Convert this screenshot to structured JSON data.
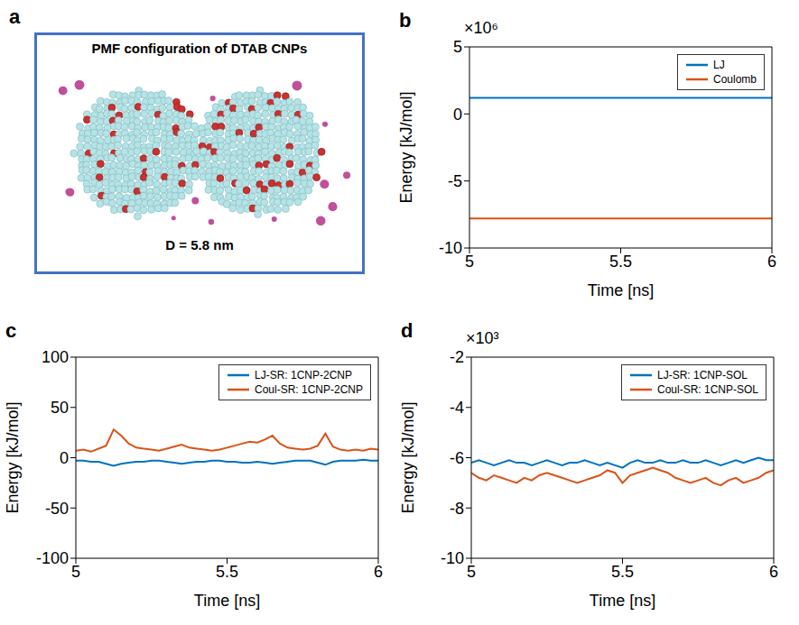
{
  "panel_a": {
    "label": "a",
    "title": "PMF configuration of DTAB CNPs",
    "annotation": "D = 5.8 nm"
  },
  "chart_data": [
    {
      "panel": "b",
      "type": "line",
      "xlabel": "Time [ns]",
      "ylabel": "Energy [kJ/mol]",
      "y_scale_label": "×10⁶",
      "x": [
        5,
        5.1,
        5.2,
        5.3,
        5.4,
        5.5,
        5.6,
        5.7,
        5.8,
        5.9,
        6
      ],
      "series": [
        {
          "name": "LJ",
          "color": "#0072BD",
          "values": [
            1.2,
            1.2,
            1.2,
            1.2,
            1.2,
            1.2,
            1.2,
            1.2,
            1.2,
            1.2,
            1.2
          ]
        },
        {
          "name": "Coulomb",
          "color": "#D95319",
          "values": [
            -7.8,
            -7.8,
            -7.8,
            -7.8,
            -7.8,
            -7.8,
            -7.8,
            -7.8,
            -7.8,
            -7.8,
            -7.8
          ]
        }
      ],
      "xlim": [
        5,
        6
      ],
      "xticks": [
        5,
        5.5,
        6
      ],
      "ylim": [
        -10,
        5
      ],
      "yticks": [
        -10,
        -5,
        0,
        5
      ],
      "legend": "top-right"
    },
    {
      "panel": "c",
      "type": "line",
      "xlabel": "Time [ns]",
      "ylabel": "Energy [kJ/mol]",
      "x": [
        5,
        5.025,
        5.05,
        5.075,
        5.1,
        5.125,
        5.15,
        5.175,
        5.2,
        5.225,
        5.25,
        5.275,
        5.3,
        5.325,
        5.35,
        5.375,
        5.4,
        5.425,
        5.45,
        5.475,
        5.5,
        5.525,
        5.55,
        5.575,
        5.6,
        5.625,
        5.65,
        5.675,
        5.7,
        5.725,
        5.75,
        5.775,
        5.8,
        5.825,
        5.85,
        5.875,
        5.9,
        5.925,
        5.95,
        5.975,
        6
      ],
      "series": [
        {
          "name": "LJ-SR: 1CNP-2CNP",
          "color": "#0072BD",
          "values": [
            -3,
            -3,
            -4,
            -4,
            -6,
            -8,
            -6,
            -5,
            -4,
            -4,
            -3,
            -3,
            -4,
            -5,
            -6,
            -5,
            -4,
            -4,
            -3,
            -3,
            -4,
            -4,
            -5,
            -5,
            -4,
            -5,
            -6,
            -5,
            -4,
            -3,
            -3,
            -3,
            -5,
            -7,
            -4,
            -3,
            -3,
            -3,
            -2,
            -3,
            -3
          ]
        },
        {
          "name": "Coul-SR: 1CNP-2CNP",
          "color": "#D95319",
          "values": [
            7,
            8,
            6,
            9,
            12,
            28,
            22,
            14,
            10,
            9,
            8,
            7,
            9,
            11,
            13,
            10,
            9,
            8,
            7,
            8,
            10,
            12,
            14,
            16,
            15,
            18,
            22,
            14,
            10,
            9,
            8,
            9,
            12,
            24,
            11,
            8,
            7,
            8,
            7,
            9,
            8
          ]
        }
      ],
      "xlim": [
        5,
        6
      ],
      "xticks": [
        5,
        5.5,
        6
      ],
      "ylim": [
        -100,
        100
      ],
      "yticks": [
        -100,
        -50,
        0,
        50,
        100
      ],
      "legend": "top-right"
    },
    {
      "panel": "d",
      "type": "line",
      "xlabel": "Time [ns]",
      "ylabel": "Energy [kJ/mol]",
      "y_scale_label": "×10³",
      "x": [
        5,
        5.025,
        5.05,
        5.075,
        5.1,
        5.125,
        5.15,
        5.175,
        5.2,
        5.225,
        5.25,
        5.275,
        5.3,
        5.325,
        5.35,
        5.375,
        5.4,
        5.425,
        5.45,
        5.475,
        5.5,
        5.525,
        5.55,
        5.575,
        5.6,
        5.625,
        5.65,
        5.675,
        5.7,
        5.725,
        5.75,
        5.775,
        5.8,
        5.825,
        5.85,
        5.875,
        5.9,
        5.925,
        5.95,
        5.975,
        6
      ],
      "series": [
        {
          "name": "LJ-SR: 1CNP-SOL",
          "color": "#0072BD",
          "values": [
            -6.2,
            -6.1,
            -6.2,
            -6.3,
            -6.2,
            -6.1,
            -6.2,
            -6.2,
            -6.3,
            -6.2,
            -6.1,
            -6.2,
            -6.3,
            -6.2,
            -6.2,
            -6.1,
            -6.2,
            -6.3,
            -6.2,
            -6.3,
            -6.4,
            -6.2,
            -6.1,
            -6.2,
            -6.2,
            -6.1,
            -6.2,
            -6.2,
            -6.1,
            -6.2,
            -6.2,
            -6.1,
            -6.2,
            -6.3,
            -6.2,
            -6.1,
            -6.2,
            -6.1,
            -6.0,
            -6.1,
            -6.1
          ]
        },
        {
          "name": "Coul-SR: 1CNP-SOL",
          "color": "#D95319",
          "values": [
            -6.6,
            -6.8,
            -6.9,
            -6.7,
            -6.8,
            -6.9,
            -7.0,
            -6.8,
            -6.9,
            -6.7,
            -6.6,
            -6.7,
            -6.8,
            -6.9,
            -7.0,
            -6.9,
            -6.8,
            -6.7,
            -6.5,
            -6.6,
            -7.0,
            -6.7,
            -6.6,
            -6.5,
            -6.4,
            -6.5,
            -6.6,
            -6.8,
            -6.9,
            -7.0,
            -6.9,
            -6.8,
            -7.0,
            -7.1,
            -6.9,
            -6.8,
            -7.0,
            -6.9,
            -6.8,
            -6.6,
            -6.5
          ]
        }
      ],
      "xlim": [
        5,
        6
      ],
      "xticks": [
        5,
        5.5,
        6
      ],
      "ylim": [
        -10,
        -2
      ],
      "yticks": [
        -10,
        -8,
        -6,
        -4,
        -2
      ],
      "legend": "top-right"
    }
  ]
}
